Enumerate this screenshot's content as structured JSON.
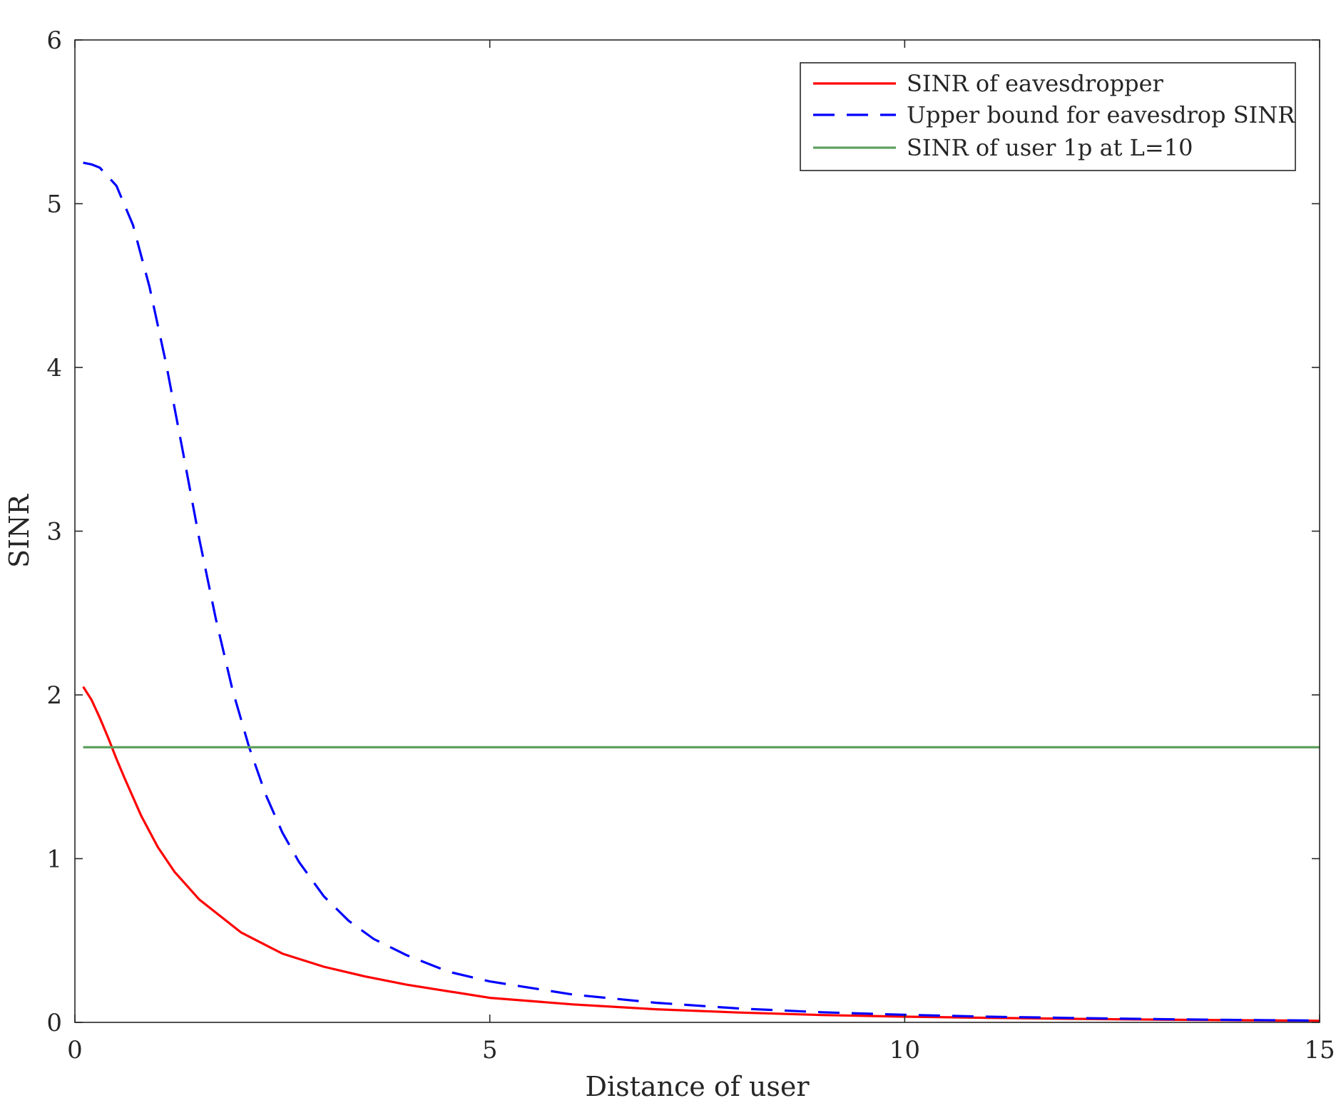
{
  "chart_data": {
    "type": "line",
    "xlabel": "Distance of user",
    "ylabel": "SINR",
    "xlim": [
      0,
      15
    ],
    "ylim": [
      0,
      6
    ],
    "x_ticks": [
      0,
      5,
      10,
      15
    ],
    "x_tick_labels": [
      "0",
      "5",
      "10",
      "15"
    ],
    "y_ticks": [
      0,
      1,
      2,
      3,
      4,
      5,
      6
    ],
    "y_tick_labels": [
      "0",
      "1",
      "2",
      "3",
      "4",
      "5",
      "6"
    ],
    "grid": false,
    "legend_position": "top-right",
    "series": [
      {
        "name": "SINR of eavesdropper",
        "color": "#ff0000",
        "style": "solid",
        "x": [
          0.1,
          0.2,
          0.3,
          0.4,
          0.5,
          0.6,
          0.8,
          1.0,
          1.2,
          1.5,
          2.0,
          2.5,
          3.0,
          3.5,
          4.0,
          5.0,
          6.0,
          7.0,
          8.0,
          9.0,
          10.0,
          11.0,
          12.0,
          13.0,
          14.0,
          15.0
        ],
        "values": [
          2.05,
          1.97,
          1.86,
          1.74,
          1.61,
          1.49,
          1.26,
          1.07,
          0.92,
          0.75,
          0.55,
          0.42,
          0.34,
          0.28,
          0.23,
          0.15,
          0.11,
          0.08,
          0.06,
          0.045,
          0.035,
          0.028,
          0.022,
          0.017,
          0.013,
          0.01
        ]
      },
      {
        "name": "Upper bound for eavesdrop SINR",
        "color": "#0000ff",
        "style": "dashed",
        "x": [
          0.1,
          0.2,
          0.3,
          0.5,
          0.7,
          0.9,
          1.1,
          1.3,
          1.5,
          1.7,
          1.9,
          2.1,
          2.3,
          2.5,
          2.7,
          3.0,
          3.3,
          3.6,
          4.0,
          4.5,
          5.0,
          6.0,
          7.0,
          8.0,
          9.0,
          10.0,
          11.0,
          12.0,
          13.0,
          14.0,
          15.0
        ],
        "values": [
          5.25,
          5.24,
          5.22,
          5.11,
          4.87,
          4.49,
          4.02,
          3.49,
          2.95,
          2.46,
          2.03,
          1.68,
          1.39,
          1.16,
          0.98,
          0.77,
          0.62,
          0.51,
          0.41,
          0.31,
          0.25,
          0.17,
          0.12,
          0.085,
          0.062,
          0.046,
          0.035,
          0.027,
          0.02,
          0.015,
          0.011
        ]
      },
      {
        "name": "SINR of user 1p at L=10",
        "color": "#5fa05f",
        "style": "solid",
        "x": [
          0.1,
          15.0
        ],
        "values": [
          1.68,
          1.68
        ]
      }
    ]
  }
}
